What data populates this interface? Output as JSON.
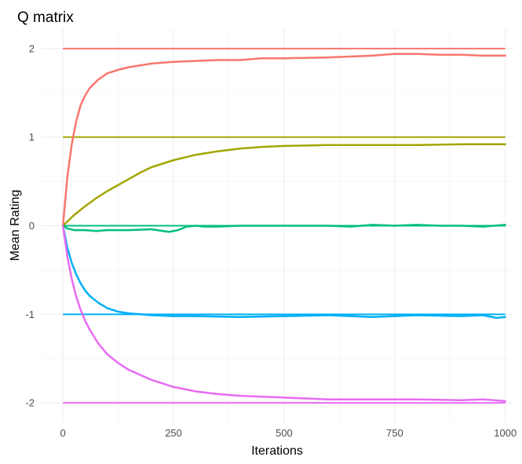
{
  "chart_data": {
    "type": "line",
    "title": "Q matrix",
    "xlabel": "Iterations",
    "ylabel": "Mean Rating",
    "xlim": [
      -50,
      1020
    ],
    "ylim": [
      -2.22,
      2.22
    ],
    "x_ticks": [
      0,
      250,
      500,
      750,
      1000
    ],
    "x_tick_labels": [
      "0",
      "250",
      "500",
      "750",
      "1000"
    ],
    "y_ticks": [
      -2,
      -1,
      0,
      1,
      2
    ],
    "y_tick_labels": [
      "-2",
      "-1",
      "0",
      "1",
      "2"
    ],
    "grid": true,
    "legend": "none",
    "reference_lines": [
      {
        "y": 2,
        "color": "#F8766D"
      },
      {
        "y": 1,
        "color": "#A3A500"
      },
      {
        "y": 0,
        "color": "#00BF7D"
      },
      {
        "y": -1,
        "color": "#00B0F6"
      },
      {
        "y": -2,
        "color": "#E76BF3"
      }
    ],
    "series": [
      {
        "color": "#F8766D",
        "x": [
          0,
          10,
          20,
          30,
          40,
          50,
          60,
          80,
          100,
          125,
          150,
          200,
          250,
          300,
          350,
          400,
          450,
          500,
          600,
          700,
          750,
          800,
          850,
          900,
          950,
          1000
        ],
        "y": [
          0,
          0.55,
          0.92,
          1.18,
          1.36,
          1.47,
          1.55,
          1.65,
          1.72,
          1.76,
          1.79,
          1.83,
          1.85,
          1.86,
          1.87,
          1.87,
          1.89,
          1.89,
          1.9,
          1.92,
          1.94,
          1.94,
          1.93,
          1.93,
          1.92,
          1.92
        ]
      },
      {
        "color": "#A3A500",
        "x": [
          0,
          25,
          50,
          75,
          100,
          125,
          150,
          175,
          200,
          250,
          300,
          350,
          400,
          450,
          500,
          600,
          700,
          800,
          900,
          1000
        ],
        "y": [
          0,
          0.12,
          0.22,
          0.31,
          0.39,
          0.46,
          0.53,
          0.6,
          0.66,
          0.74,
          0.8,
          0.84,
          0.87,
          0.89,
          0.9,
          0.91,
          0.91,
          0.91,
          0.92,
          0.92
        ]
      },
      {
        "color": "#00BF7D",
        "x": [
          0,
          10,
          25,
          50,
          75,
          100,
          150,
          200,
          240,
          260,
          280,
          300,
          320,
          350,
          400,
          450,
          500,
          550,
          600,
          650,
          700,
          750,
          800,
          850,
          900,
          950,
          1000
        ],
        "y": [
          0,
          -0.03,
          -0.05,
          -0.05,
          -0.06,
          -0.05,
          -0.05,
          -0.04,
          -0.07,
          -0.05,
          -0.01,
          0.0,
          -0.01,
          -0.01,
          0.0,
          0.0,
          0.0,
          0.0,
          0.0,
          -0.01,
          0.01,
          0.0,
          0.01,
          0.0,
          0.0,
          -0.01,
          0.01
        ]
      },
      {
        "color": "#00B0F6",
        "x": [
          0,
          10,
          20,
          30,
          40,
          50,
          60,
          80,
          100,
          125,
          150,
          175,
          200,
          250,
          300,
          400,
          500,
          600,
          700,
          800,
          900,
          950,
          980,
          1000
        ],
        "y": [
          0,
          -0.25,
          -0.42,
          -0.55,
          -0.65,
          -0.73,
          -0.79,
          -0.87,
          -0.93,
          -0.97,
          -0.99,
          -1.0,
          -1.01,
          -1.02,
          -1.02,
          -1.03,
          -1.02,
          -1.01,
          -1.03,
          -1.01,
          -1.02,
          -1.01,
          -1.04,
          -1.03
        ]
      },
      {
        "color": "#E76BF3",
        "x": [
          0,
          10,
          20,
          30,
          40,
          50,
          60,
          80,
          100,
          125,
          150,
          200,
          250,
          300,
          350,
          400,
          450,
          500,
          600,
          700,
          800,
          900,
          950,
          1000
        ],
        "y": [
          0,
          -0.35,
          -0.6,
          -0.8,
          -0.95,
          -1.07,
          -1.17,
          -1.33,
          -1.45,
          -1.55,
          -1.63,
          -1.74,
          -1.82,
          -1.87,
          -1.9,
          -1.92,
          -1.93,
          -1.94,
          -1.96,
          -1.96,
          -1.96,
          -1.97,
          -1.96,
          -1.98
        ]
      }
    ]
  }
}
